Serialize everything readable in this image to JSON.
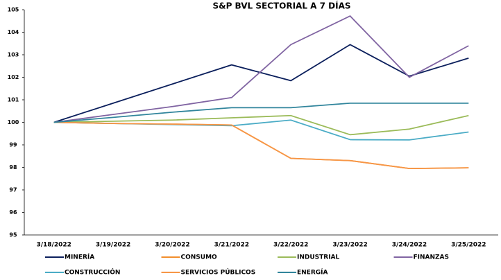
{
  "chart_data": {
    "type": "line",
    "title": "S&P BVL SECTORIAL A 7 DÍAS",
    "categories": [
      "3/18/2022",
      "3/19/2022",
      "3/20/2022",
      "3/21/2022",
      "3/22/2022",
      "3/23/2022",
      "3/24/2022",
      "3/25/2022"
    ],
    "series": [
      {
        "name": "MINERÍA",
        "color": "#0b1f5c",
        "values": [
          100,
          100.85,
          101.7,
          102.55,
          101.85,
          103.45,
          102.05,
          102.85
        ]
      },
      {
        "name": "CONSUMO",
        "color": "#f28e2b",
        "values": [
          100,
          99.95,
          99.92,
          99.88,
          98.4,
          98.3,
          97.95,
          97.98
        ]
      },
      {
        "name": "INDUSTRIAL",
        "color": "#9bbb59",
        "values": [
          100,
          100.05,
          100.1,
          100.2,
          100.3,
          99.45,
          99.7,
          100.3
        ]
      },
      {
        "name": "FINANZAS",
        "color": "#8064a2",
        "values": [
          100,
          100.35,
          100.7,
          101.1,
          103.45,
          104.72,
          102.0,
          103.4
        ]
      },
      {
        "name": "CONSTRUCCIÓN",
        "color": "#4bacc6",
        "values": [
          100,
          99.95,
          99.9,
          99.85,
          100.1,
          99.23,
          99.22,
          99.57
        ]
      },
      {
        "name": "SERVICIOS PÚBLICOS",
        "color": "#f79646",
        "values": [
          100,
          99.95,
          99.92,
          99.88,
          98.4,
          98.3,
          97.95,
          97.98
        ]
      },
      {
        "name": "ENERGÍA",
        "color": "#31859c",
        "values": [
          100,
          100.22,
          100.45,
          100.65,
          100.65,
          100.85,
          100.85,
          100.85
        ]
      }
    ],
    "ylim": [
      95,
      105
    ],
    "yticks": [
      95,
      96,
      97,
      98,
      99,
      100,
      101,
      102,
      103,
      104,
      105
    ]
  }
}
